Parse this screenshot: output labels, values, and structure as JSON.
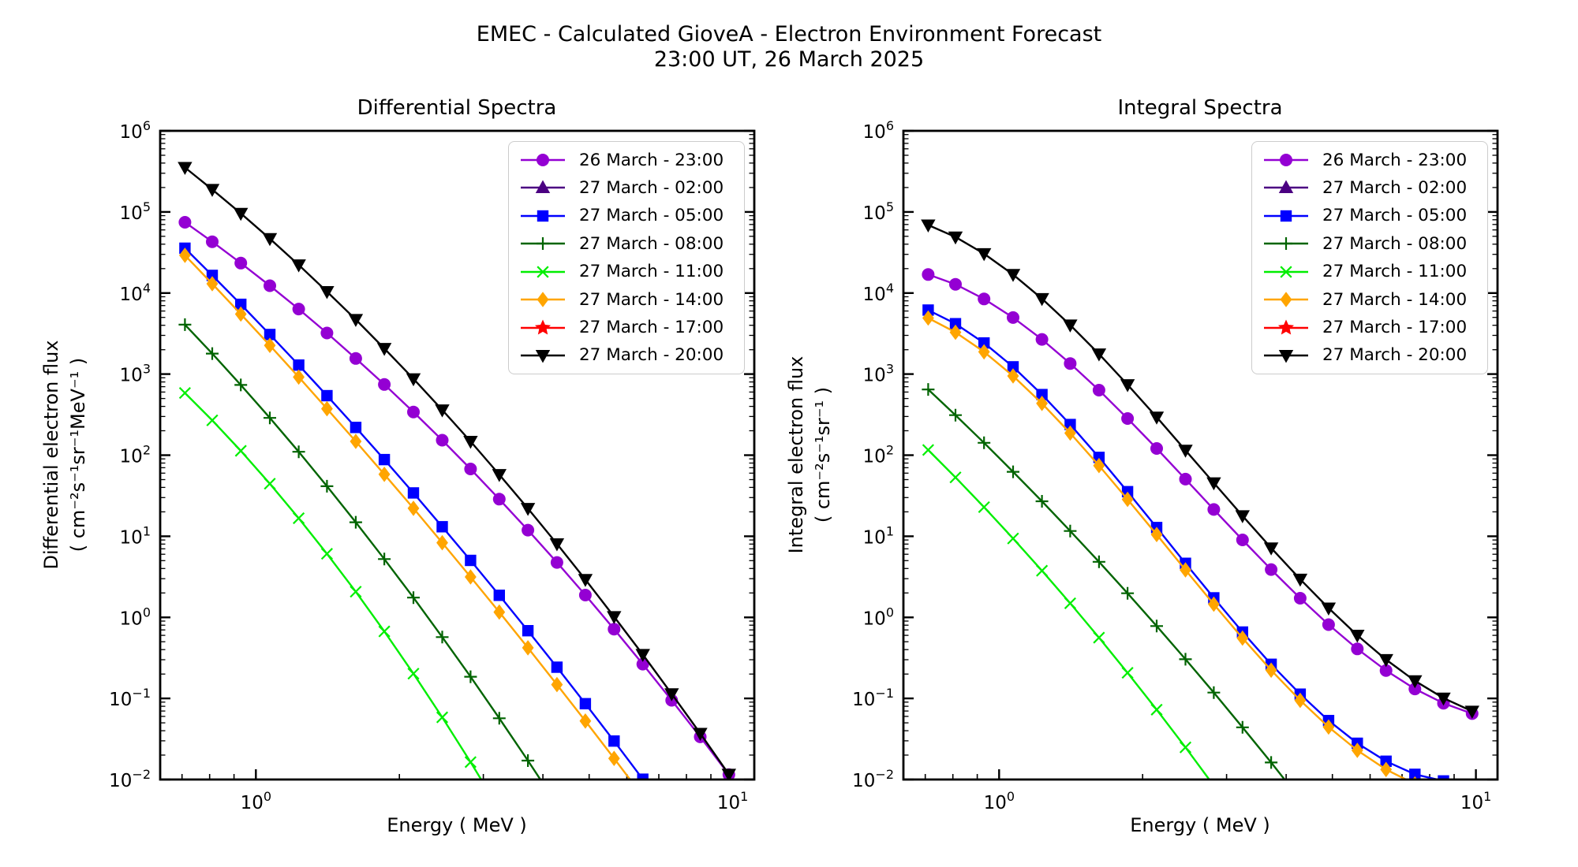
{
  "figure": {
    "title_line1": "EMEC - Calculated GioveA - Electron Environment Forecast",
    "title_line2": "23:00 UT, 26 March 2025"
  },
  "chart_data": [
    {
      "type": "line",
      "title": "Differential Spectra",
      "xlabel": "Energy ( MeV )",
      "ylabel_line1": "Differential electron flux",
      "ylabel_line2": "( cm⁻²s⁻¹sr⁻¹MeV⁻¹ )",
      "xscale": "log",
      "yscale": "log",
      "xlim": [
        0.63,
        11.1
      ],
      "ylim": [
        0.01,
        1000000
      ],
      "grid": false,
      "legend_position": "upper right",
      "x_tick_exponents": [
        0,
        1
      ],
      "y_tick_exponents": [
        6,
        5,
        4,
        3,
        2,
        1,
        0,
        -1,
        -2
      ],
      "series": [
        {
          "name": "26 March - 23:00",
          "color": "#9400D3",
          "marker": "circle",
          "x": [
            0.71,
            0.81,
            0.93,
            1.07,
            1.23,
            1.41,
            1.62,
            1.86,
            2.14,
            2.46,
            2.82,
            3.24,
            3.72,
            4.28,
            4.91,
            5.64,
            6.48,
            7.45,
            8.55,
            9.82
          ],
          "y": [
            74500,
            42900,
            23400,
            12300,
            6340,
            3210,
            1560,
            745,
            341,
            153,
            67.6,
            28.7,
            11.9,
            4.75,
            1.88,
            0.715,
            0.265,
            0.0949,
            0.0336,
            0.0115
          ]
        },
        {
          "name": "27 March - 02:00",
          "color": "#4B0082",
          "marker": "triangle_up",
          "x": [],
          "y": []
        },
        {
          "name": "27 March - 05:00",
          "color": "#0000FF",
          "marker": "square",
          "x": [
            0.71,
            0.81,
            0.93,
            1.07,
            1.23,
            1.41,
            1.62,
            1.86,
            2.14,
            2.46,
            2.82,
            3.24,
            3.72,
            4.28,
            4.91,
            5.64,
            6.48,
            7.45
          ],
          "y": [
            35700,
            16500,
            7250,
            3080,
            1290,
            542,
            220,
            88.2,
            34.2,
            13.1,
            5.04,
            1.87,
            0.684,
            0.243,
            0.0861,
            0.0298,
            0.0101,
            0.0033
          ]
        },
        {
          "name": "27 March - 08:00",
          "color": "#006400",
          "marker": "plus",
          "x": [
            0.71,
            0.81,
            0.93,
            1.07,
            1.23,
            1.41,
            1.62,
            1.86,
            2.14,
            2.46,
            2.82,
            3.24,
            3.72,
            4.28
          ],
          "y": [
            4070,
            1790,
            734,
            288,
            110,
            41.4,
            14.9,
            5.23,
            1.75,
            0.571,
            0.185,
            0.0569,
            0.0171,
            0.0049
          ]
        },
        {
          "name": "27 March - 11:00",
          "color": "#00EE00",
          "marker": "x",
          "x": [
            0.71,
            0.81,
            0.93,
            1.07,
            1.23,
            1.41,
            1.62,
            1.86,
            2.14,
            2.46,
            2.82,
            3.24
          ],
          "y": [
            585,
            269,
            113,
            44.5,
            16.7,
            6.08,
            2.07,
            0.67,
            0.202,
            0.0585,
            0.0164,
            0.0043
          ]
        },
        {
          "name": "27 March - 14:00",
          "color": "#FFA500",
          "marker": "diamond",
          "x": [
            0.71,
            0.81,
            0.93,
            1.07,
            1.23,
            1.41,
            1.62,
            1.86,
            2.14,
            2.46,
            2.82,
            3.24,
            3.72,
            4.28,
            4.91,
            5.64,
            6.48
          ],
          "y": [
            29200,
            13000,
            5500,
            2260,
            918,
            374,
            148,
            58.0,
            22.1,
            8.32,
            3.15,
            1.16,
            0.421,
            0.148,
            0.0526,
            0.0182,
            0.0062
          ]
        },
        {
          "name": "27 March - 17:00",
          "color": "#FF0000",
          "marker": "star",
          "x": [],
          "y": []
        },
        {
          "name": "27 March - 20:00",
          "color": "#000000",
          "marker": "triangle_down",
          "x": [
            0.71,
            0.81,
            0.93,
            1.07,
            1.23,
            1.41,
            1.62,
            1.86,
            2.14,
            2.46,
            2.82,
            3.24,
            3.72,
            4.28,
            4.91,
            5.64,
            6.48,
            7.45,
            8.55,
            9.82
          ],
          "y": [
            353000,
            189000,
            95900,
            46800,
            22200,
            10400,
            4710,
            2070,
            874,
            361,
            148,
            57.7,
            22.0,
            8.07,
            2.93,
            1.02,
            0.348,
            0.114,
            0.037,
            0.0116
          ]
        }
      ]
    },
    {
      "type": "line",
      "title": "Integral Spectra",
      "xlabel": "Energy ( MeV )",
      "ylabel_line1": "Integral electron flux",
      "ylabel_line2": "( cm⁻²s⁻¹sr⁻¹ )",
      "xscale": "log",
      "yscale": "log",
      "xlim": [
        0.63,
        11.1
      ],
      "ylim": [
        0.01,
        1000000
      ],
      "grid": false,
      "legend_position": "upper right",
      "x_tick_exponents": [
        0,
        1
      ],
      "y_tick_exponents": [
        6,
        5,
        4,
        3,
        2,
        1,
        0,
        -1,
        -2
      ],
      "series": [
        {
          "name": "26 March - 23:00",
          "color": "#9400D3",
          "marker": "circle",
          "x": [
            0.71,
            0.81,
            0.93,
            1.07,
            1.23,
            1.41,
            1.62,
            1.86,
            2.14,
            2.46,
            2.82,
            3.24,
            3.72,
            4.28,
            4.91,
            5.64,
            6.48,
            7.45,
            8.55,
            9.82
          ],
          "y": [
            16900,
            12800,
            8450,
            4980,
            2680,
            1350,
            634,
            283,
            121,
            50.6,
            21.4,
            9.02,
            3.89,
            1.72,
            0.813,
            0.408,
            0.221,
            0.131,
            0.0872,
            0.065
          ]
        },
        {
          "name": "27 March - 02:00",
          "color": "#4B0082",
          "marker": "triangle_up",
          "x": [],
          "y": []
        },
        {
          "name": "27 March - 05:00",
          "color": "#0000FF",
          "marker": "square",
          "x": [
            0.71,
            0.81,
            0.93,
            1.07,
            1.23,
            1.41,
            1.62,
            1.86,
            2.14,
            2.46,
            2.82,
            3.24,
            3.72,
            4.28,
            4.91,
            5.64,
            6.48,
            7.45,
            8.55
          ],
          "y": [
            6160,
            4180,
            2420,
            1230,
            559,
            239,
            93.9,
            35.5,
            12.8,
            4.64,
            1.74,
            0.659,
            0.264,
            0.113,
            0.0533,
            0.028,
            0.0168,
            0.0116,
            0.0096
          ]
        },
        {
          "name": "27 March - 08:00",
          "color": "#006400",
          "marker": "plus",
          "x": [
            0.71,
            0.81,
            0.93,
            1.07,
            1.23,
            1.41,
            1.62,
            1.86,
            2.14,
            2.46,
            2.82,
            3.24,
            3.72,
            4.28
          ],
          "y": [
            647,
            312,
            142,
            62.4,
            27.0,
            11.6,
            4.84,
            1.98,
            0.781,
            0.304,
            0.118,
            0.044,
            0.0162,
            0.0057
          ]
        },
        {
          "name": "27 March - 11:00",
          "color": "#00EE00",
          "marker": "x",
          "x": [
            0.71,
            0.81,
            0.93,
            1.07,
            1.23,
            1.41,
            1.62,
            1.86,
            2.14,
            2.46,
            2.82
          ],
          "y": [
            116,
            53.2,
            22.9,
            9.39,
            3.76,
            1.49,
            0.562,
            0.207,
            0.0726,
            0.0249,
            0.0084
          ]
        },
        {
          "name": "27 March - 14:00",
          "color": "#FFA500",
          "marker": "diamond",
          "x": [
            0.71,
            0.81,
            0.93,
            1.07,
            1.23,
            1.41,
            1.62,
            1.86,
            2.14,
            2.46,
            2.82,
            3.24,
            3.72,
            4.28,
            4.91,
            5.64,
            6.48,
            7.45
          ],
          "y": [
            4910,
            3280,
            1880,
            949,
            435,
            187,
            74.5,
            28.5,
            10.5,
            3.84,
            1.45,
            0.555,
            0.223,
            0.0947,
            0.0444,
            0.0229,
            0.0133,
            0.0088
          ]
        },
        {
          "name": "27 March - 17:00",
          "color": "#FF0000",
          "marker": "star",
          "x": [],
          "y": []
        },
        {
          "name": "27 March - 20:00",
          "color": "#000000",
          "marker": "triangle_down",
          "x": [
            0.71,
            0.81,
            0.93,
            1.07,
            1.23,
            1.41,
            1.62,
            1.86,
            2.14,
            2.46,
            2.82,
            3.24,
            3.72,
            4.28,
            4.91,
            5.64,
            6.48,
            7.45,
            8.55,
            9.82
          ],
          "y": [
            69000,
            49100,
            30500,
            16900,
            8520,
            4030,
            1770,
            740,
            295,
            115,
            45.6,
            17.9,
            7.18,
            2.95,
            1.3,
            0.601,
            0.301,
            0.165,
            0.101,
            0.0694
          ]
        }
      ]
    }
  ]
}
